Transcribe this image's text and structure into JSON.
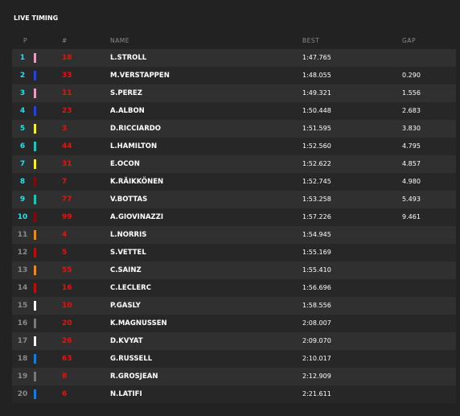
{
  "header": {
    "title": "LIVE TIMING"
  },
  "table": {
    "columns": {
      "pos": "P",
      "number": "#",
      "name": "NAME",
      "best": "BEST",
      "gap": "GAP"
    },
    "rows": [
      {
        "pos": 1,
        "color": "#f596c8",
        "number": 18,
        "name": "L.STROLL",
        "best": "1:47.765",
        "gap": null
      },
      {
        "pos": 2,
        "color": "#1e41ff",
        "number": 33,
        "name": "M.VERSTAPPEN",
        "best": "1:48.055",
        "gap": "0.290"
      },
      {
        "pos": 3,
        "color": "#f596c8",
        "number": 11,
        "name": "S.PEREZ",
        "best": "1:49.321",
        "gap": "1.556"
      },
      {
        "pos": 4,
        "color": "#1e41ff",
        "number": 23,
        "name": "A.ALBON",
        "best": "1:50.448",
        "gap": "2.683"
      },
      {
        "pos": 5,
        "color": "#fff500",
        "number": 3,
        "name": "D.RICCIARDO",
        "best": "1:51.595",
        "gap": "3.830"
      },
      {
        "pos": 6,
        "color": "#00d2be",
        "number": 44,
        "name": "L.HAMILTON",
        "best": "1:52.560",
        "gap": "4.795"
      },
      {
        "pos": 7,
        "color": "#fff500",
        "number": 31,
        "name": "E.OCON",
        "best": "1:52.622",
        "gap": "4.857"
      },
      {
        "pos": 8,
        "color": "#9b0000",
        "number": 7,
        "name": "K.RÄIKKÖNEN",
        "best": "1:52.745",
        "gap": "4.980"
      },
      {
        "pos": 9,
        "color": "#00d2be",
        "number": 77,
        "name": "V.BOTTAS",
        "best": "1:53.258",
        "gap": "5.493"
      },
      {
        "pos": 10,
        "color": "#9b0000",
        "number": 99,
        "name": "A.GIOVINAZZI",
        "best": "1:57.226",
        "gap": "9.461"
      },
      {
        "pos": 11,
        "color": "#ff8700",
        "number": 4,
        "name": "L.NORRIS",
        "best": "1:54.945",
        "gap": null
      },
      {
        "pos": 12,
        "color": "#dc0000",
        "number": 5,
        "name": "S.VETTEL",
        "best": "1:55.169",
        "gap": null
      },
      {
        "pos": 13,
        "color": "#ff8700",
        "number": 55,
        "name": "C.SAINZ",
        "best": "1:55.410",
        "gap": null
      },
      {
        "pos": 14,
        "color": "#dc0000",
        "number": 16,
        "name": "C.LECLERC",
        "best": "1:56.696",
        "gap": null
      },
      {
        "pos": 15,
        "color": "#ffffff",
        "number": 10,
        "name": "P.GASLY",
        "best": "1:58.556",
        "gap": null
      },
      {
        "pos": 16,
        "color": "#787878",
        "number": 20,
        "name": "K.MAGNUSSEN",
        "best": "2:08.007",
        "gap": null
      },
      {
        "pos": 17,
        "color": "#ffffff",
        "number": 26,
        "name": "D.KVYAT",
        "best": "2:09.070",
        "gap": null
      },
      {
        "pos": 18,
        "color": "#0082fa",
        "number": 63,
        "name": "G.RUSSELL",
        "best": "2:10.017",
        "gap": null
      },
      {
        "pos": 19,
        "color": "#787878",
        "number": 8,
        "name": "R.GROSJEAN",
        "best": "2:12.909",
        "gap": null
      },
      {
        "pos": 20,
        "color": "#0082fa",
        "number": 6,
        "name": "N.LATIFI",
        "best": "2:21.611",
        "gap": null
      }
    ]
  }
}
